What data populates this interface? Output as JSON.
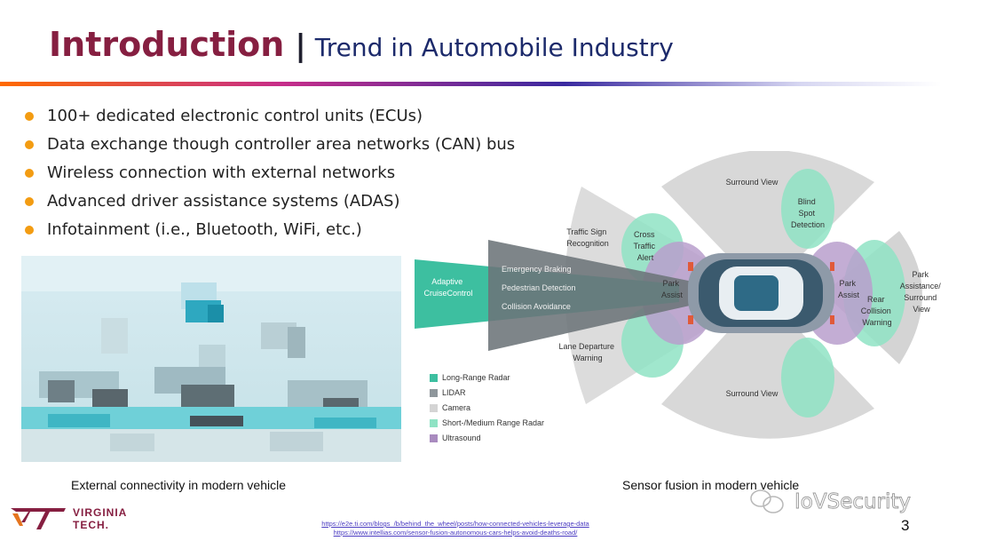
{
  "slide": {
    "title_main": "Introduction",
    "title_separator": "|",
    "title_sub": "Trend in Automobile Industry",
    "bullets": [
      "100+ dedicated electronic control units (ECUs)",
      "Data exchange though controller area networks (CAN) bus",
      "Wireless connection with external networks",
      "Advanced driver assistance systems (ADAS)",
      "Infotainment (i.e., Bluetooth, WiFi, etc.)"
    ],
    "bullet_color": "#F39C12",
    "accent_color": "#861F41",
    "caption_left": "External connectivity in modern vehicle",
    "caption_right": "Sensor fusion in modern vehicle",
    "references": [
      "https://e2e.ti.com/blogs_/b/behind_the_wheel/posts/how-connected-vehicles-leverage-data",
      "https://www.intellias.com/sensor-fusion-autonomous-cars-helps-avoid-deaths-road/"
    ],
    "page_number": "3",
    "logo": {
      "line1": "VIRGINIA",
      "line2": "TECH."
    },
    "watermark": "IoVSecurity"
  },
  "diagram": {
    "labels": {
      "surround_view_top": "Surround View",
      "surround_view_bottom": "Surround View",
      "blind_spot": [
        "Blind",
        "Spot",
        "Detection"
      ],
      "traffic_sign": [
        "Traffic Sign",
        "Recognition"
      ],
      "cross_traffic": [
        "Cross",
        "Traffic",
        "Alert"
      ],
      "adaptive_cruise": [
        "Adaptive",
        "CruiseControl"
      ],
      "emergency_braking": "Emergency Braking",
      "pedestrian_detection": "Pedestrian Detection",
      "collision_avoidance": "Collision Avoidance",
      "park_assist_front": [
        "Park",
        "Assist"
      ],
      "park_assist_rear": [
        "Park",
        "Assist"
      ],
      "rear_collision": [
        "Rear",
        "Collision",
        "Warning"
      ],
      "park_assistance_surround": [
        "Park",
        "Assistance/",
        "Surround",
        "View"
      ],
      "lane_departure": [
        "Lane Departure",
        "Warning"
      ]
    },
    "legend": [
      {
        "label": "Long-Range Radar",
        "color": "#3DBFA0"
      },
      {
        "label": "LIDAR",
        "color": "#8E969B"
      },
      {
        "label": "Camera",
        "color": "#D4D4D4"
      },
      {
        "label": "Short-/Medium Range Radar",
        "color": "#8FE3C4"
      },
      {
        "label": "Ultrasound",
        "color": "#A98BBF"
      }
    ]
  }
}
